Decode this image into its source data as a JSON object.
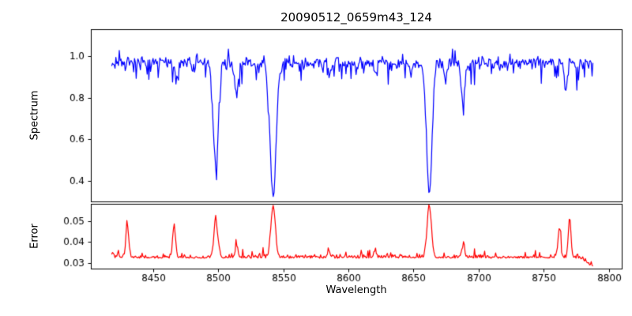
{
  "chart_data": {
    "type": "line",
    "title": "20090512_0659m43_124",
    "xlabel": "Wavelength",
    "xlim": [
      8402,
      8810
    ],
    "x_data_range": [
      8418,
      8788
    ],
    "xticks": [
      8450,
      8500,
      8550,
      8600,
      8650,
      8700,
      8750,
      8800
    ],
    "grid": false,
    "legend": "none",
    "subplots": [
      {
        "ylabel": "Spectrum",
        "ylim": [
          0.3,
          1.13
        ],
        "yticks": [
          0.4,
          0.6,
          0.8,
          1.0
        ],
        "ytick_labels": [
          "0.4",
          "0.6",
          "0.8",
          "1.0"
        ],
        "series": {
          "name": "spectrum",
          "color": "#0000ff",
          "continuum": 0.97,
          "noise_sigma": 0.02,
          "absorption_lines": [
            {
              "center": 8498.0,
              "depth": 0.52,
              "width": 1.9
            },
            {
              "center": 8542.1,
              "depth": 0.65,
              "width": 2.3
            },
            {
              "center": 8662.1,
              "depth": 0.64,
              "width": 2.1
            },
            {
              "center": 8514.0,
              "depth": 0.16,
              "width": 1.2
            },
            {
              "center": 8688.0,
              "depth": 0.2,
              "width": 1.4
            },
            {
              "center": 8468.0,
              "depth": 0.1,
              "width": 1.0
            },
            {
              "center": 8585.0,
              "depth": 0.07,
              "width": 1.0
            },
            {
              "center": 8620.5,
              "depth": 0.07,
              "width": 1.0
            },
            {
              "center": 8648.0,
              "depth": 0.06,
              "width": 1.0
            },
            {
              "center": 8674.5,
              "depth": 0.09,
              "width": 1.0
            },
            {
              "center": 8767.0,
              "depth": 0.13,
              "width": 1.0
            }
          ]
        }
      },
      {
        "ylabel": "Error",
        "ylim": [
          0.0272,
          0.0585
        ],
        "yticks": [
          0.03,
          0.04,
          0.05
        ],
        "ytick_labels": [
          "0.03",
          "0.04",
          "0.05"
        ],
        "series": {
          "name": "error",
          "color": "#ff0000",
          "baseline": 0.0322,
          "noise_sigma": 0.0011,
          "peaks": [
            {
              "center": 8430.0,
              "height": 0.016,
              "width": 1.1
            },
            {
              "center": 8466.0,
              "height": 0.015,
              "width": 1.1
            },
            {
              "center": 8498.0,
              "height": 0.018,
              "width": 1.4
            },
            {
              "center": 8514.0,
              "height": 0.005,
              "width": 1.1
            },
            {
              "center": 8542.1,
              "height": 0.025,
              "width": 1.7
            },
            {
              "center": 8585.0,
              "height": 0.003,
              "width": 1.0
            },
            {
              "center": 8620.5,
              "height": 0.003,
              "width": 1.0
            },
            {
              "center": 8662.1,
              "height": 0.025,
              "width": 1.6
            },
            {
              "center": 8688.0,
              "height": 0.005,
              "width": 1.2
            },
            {
              "center": 8762.0,
              "height": 0.014,
              "width": 1.0
            },
            {
              "center": 8770.0,
              "height": 0.019,
              "width": 1.0
            }
          ]
        }
      }
    ]
  }
}
